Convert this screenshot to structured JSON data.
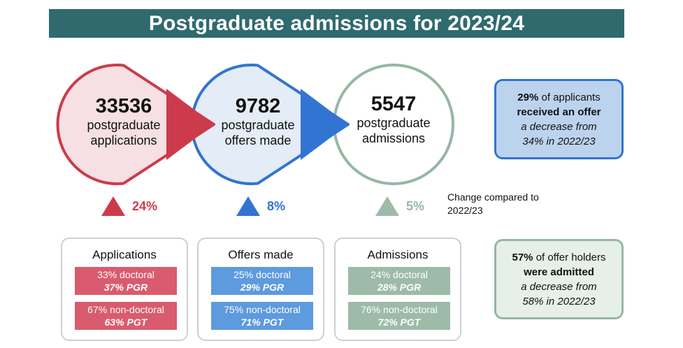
{
  "header": {
    "title": "Postgraduate admissions for 2023/24"
  },
  "colors": {
    "red": "#cc3b4b",
    "red_fill": "#f6e0e3",
    "red_chip": "#d95b6e",
    "blue": "#3274d1",
    "blue_fill": "#e4ecf7",
    "blue_chip": "#5e9ade",
    "green": "#96b7a3",
    "green_fill": "#ffffff",
    "green_chip": "#9dbba8",
    "banner": "#2f6a6f"
  },
  "funnel": [
    {
      "value": "33536",
      "label_1": "postgraduate",
      "label_2": "applications",
      "change": "24%"
    },
    {
      "value": "9782",
      "label_1": "postgraduate",
      "label_2": "offers made",
      "change": "8%"
    },
    {
      "value": "5547",
      "label_1": "postgraduate",
      "label_2": "admissions",
      "change": "5%"
    }
  ],
  "change_note": "Change compared to 2022/23",
  "breakdown": [
    {
      "title": "Applications",
      "doctoral": "33% doctoral",
      "pgr": "37% PGR",
      "non_doctoral": "67% non-doctoral",
      "pgt": "63% PGT"
    },
    {
      "title": "Offers made",
      "doctoral": "25% doctoral",
      "pgr": "29% PGR",
      "non_doctoral": "75% non-doctoral",
      "pgt": "71% PGT"
    },
    {
      "title": "Admissions",
      "doctoral": "24% doctoral",
      "pgr": "28% PGR",
      "non_doctoral": "76% non-doctoral",
      "pgt": "72% PGT"
    }
  ],
  "callouts": [
    {
      "pct": "29%",
      "text_1": " of applicants",
      "bold": "received an offer",
      "italic_1": "a decrease from",
      "italic_2": "34% in 2022/23"
    },
    {
      "pct": "57%",
      "text_1": " of offer holders",
      "bold": "were admitted",
      "italic_1": "a decrease from",
      "italic_2": "58% in 2022/23"
    }
  ]
}
